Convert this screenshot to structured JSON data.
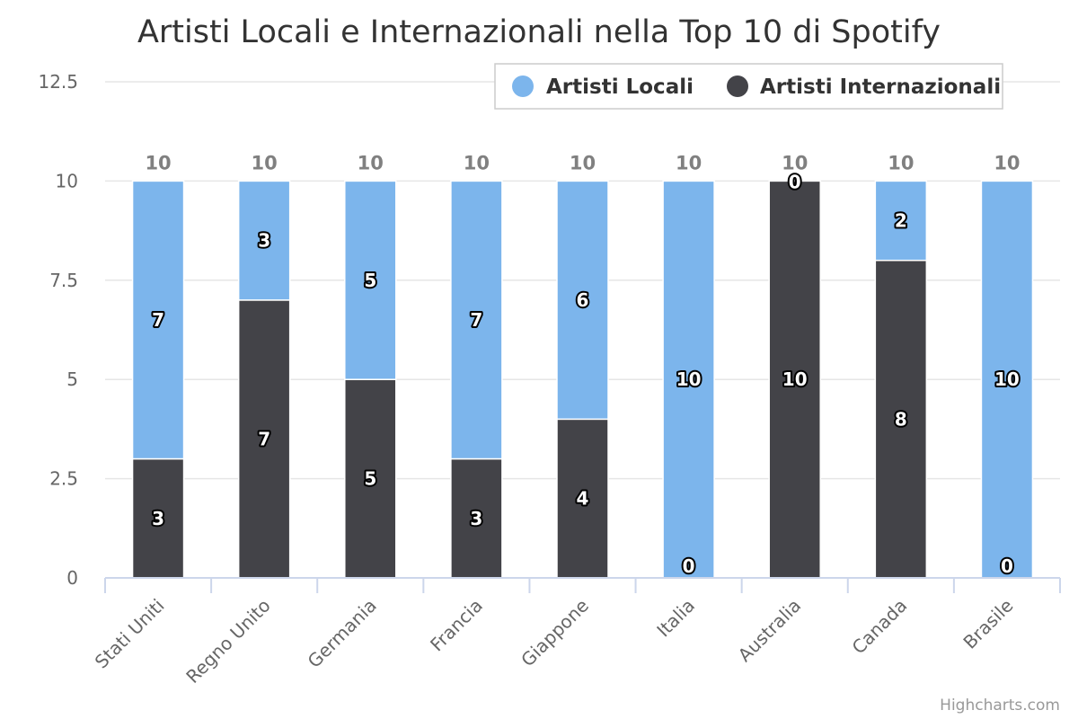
{
  "chart_data": {
    "type": "bar",
    "stacked": true,
    "title": "Artisti Locali e Internazionali nella Top 10 di Spotify",
    "categories": [
      "Stati Uniti",
      "Regno Unito",
      "Germania",
      "Francia",
      "Giappone",
      "Italia",
      "Australia",
      "Canada",
      "Brasile"
    ],
    "series": [
      {
        "name": "Artisti Locali",
        "color": "#7cb5ec",
        "values": [
          7,
          3,
          5,
          7,
          6,
          10,
          0,
          2,
          10
        ]
      },
      {
        "name": "Artisti Internazionali",
        "color": "#434348",
        "values": [
          3,
          7,
          5,
          3,
          4,
          0,
          10,
          8,
          0
        ]
      }
    ],
    "totals": [
      10,
      10,
      10,
      10,
      10,
      10,
      10,
      10,
      10
    ],
    "ylim": [
      0,
      12.5
    ],
    "yticks": [
      "0",
      "2.5",
      "5",
      "7.5",
      "10",
      "12.5"
    ],
    "grid": true,
    "legend_position": "top-right"
  },
  "credits": "Highcharts.com"
}
